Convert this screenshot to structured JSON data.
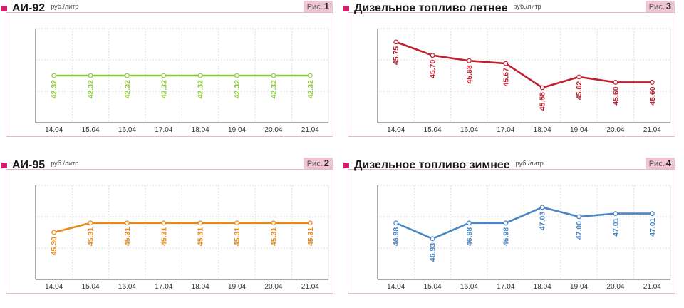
{
  "colors": {
    "accent": "#d2226e",
    "tag_bg": "#efc4d3",
    "grid": "#dddddd",
    "axis": "#555555"
  },
  "chart_data": [
    {
      "type": "line",
      "title": "АИ-92",
      "unit": "руб./литр",
      "fig_prefix": "Рис.",
      "fig_number": "1",
      "color": "#8dc63f",
      "categories": [
        "14.04",
        "15.04",
        "16.04",
        "17.04",
        "18.04",
        "19.04",
        "20.04",
        "21.04"
      ],
      "values": [
        42.32,
        42.32,
        42.32,
        42.32,
        42.32,
        42.32,
        42.32,
        42.32
      ],
      "labels": [
        "42.32",
        "42.32",
        "42.32",
        "42.32",
        "42.32",
        "42.32",
        "42.32",
        "42.32"
      ],
      "ylim": [
        42.28,
        42.36
      ],
      "grid": true
    },
    {
      "type": "line",
      "title": "АИ-95",
      "unit": "руб./литр",
      "fig_prefix": "Рис.",
      "fig_number": "2",
      "color": "#e8891c",
      "categories": [
        "14.04",
        "15.04",
        "16.04",
        "17.04",
        "18.04",
        "19.04",
        "20.04",
        "21.04"
      ],
      "values": [
        45.3,
        45.31,
        45.31,
        45.31,
        45.31,
        45.31,
        45.31,
        45.31
      ],
      "labels": [
        "45.30",
        "45.31",
        "45.31",
        "45.31",
        "45.31",
        "45.31",
        "45.31",
        "45.31"
      ],
      "ylim": [
        45.25,
        45.35
      ],
      "grid": true
    },
    {
      "type": "line",
      "title": "Дизельное топливо летнее",
      "unit": "руб./литр",
      "fig_prefix": "Рис.",
      "fig_number": "3",
      "color": "#c0202f",
      "categories": [
        "14.04",
        "15.04",
        "16.04",
        "17.04",
        "18.04",
        "19.04",
        "20.04",
        "21.04"
      ],
      "values": [
        45.75,
        45.7,
        45.68,
        45.67,
        45.58,
        45.62,
        45.6,
        45.6
      ],
      "labels": [
        "45.75",
        "45.70",
        "45.68",
        "45.67",
        "45.58",
        "45.62",
        "45.60",
        "45.60"
      ],
      "ylim": [
        45.45,
        45.8
      ],
      "grid": true
    },
    {
      "type": "line",
      "title": "Дизельное топливо зимнее",
      "unit": "руб./литр",
      "fig_prefix": "Рис.",
      "fig_number": "4",
      "color": "#4a86c5",
      "categories": [
        "14.04",
        "15.04",
        "16.04",
        "17.04",
        "18.04",
        "19.04",
        "20.04",
        "21.04"
      ],
      "values": [
        46.98,
        46.93,
        46.98,
        46.98,
        47.03,
        47.0,
        47.01,
        47.01
      ],
      "labels": [
        "46.98",
        "46.93",
        "46.98",
        "46.98",
        "47.03",
        "47.00",
        "47.01",
        "47.01"
      ],
      "ylim": [
        46.8,
        47.1
      ],
      "grid": true
    }
  ]
}
